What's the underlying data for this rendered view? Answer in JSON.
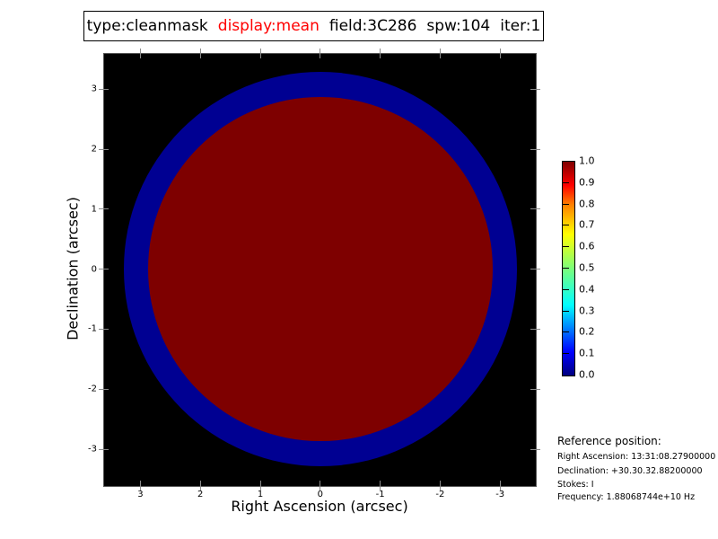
{
  "title": {
    "segments": [
      {
        "text": "type:cleanmask",
        "color": "#000000"
      },
      {
        "text": "display:mean",
        "color": "#ff0000"
      },
      {
        "text": "field:3C286",
        "color": "#000000"
      },
      {
        "text": "spw:104",
        "color": "#000000"
      },
      {
        "text": "iter:1",
        "color": "#000000"
      }
    ]
  },
  "axes": {
    "xlabel": "Right Ascension (arcsec)",
    "ylabel": "Declination (arcsec)",
    "x_tick_labels": [
      "3",
      "2",
      "1",
      "0",
      "-1",
      "-2",
      "-3"
    ],
    "y_tick_labels": [
      "3",
      "2",
      "1",
      "0",
      "-1",
      "-2",
      "-3"
    ]
  },
  "colorbar": {
    "tick_labels": [
      "1.0",
      "0.9",
      "0.8",
      "0.7",
      "0.6",
      "0.5",
      "0.4",
      "0.3",
      "0.2",
      "0.1",
      "0.0"
    ],
    "min": 0.0,
    "max": 1.0,
    "colormap": "jet"
  },
  "reference": {
    "heading": "Reference position:",
    "lines": [
      "Right Ascension: 13:31:08.27900000",
      "Declination: +30.30.32.88200000",
      "Stokes: I",
      "Frequency: 1.88068744e+10 Hz"
    ]
  },
  "chart_data": {
    "type": "heatmap",
    "title": "type:cleanmask  display:mean  field:3C286  spw:104  iter:1",
    "xlabel": "Right Ascension (arcsec)",
    "ylabel": "Declination (arcsec)",
    "x_ticks": [
      3,
      2,
      1,
      0,
      -1,
      -2,
      -3
    ],
    "y_ticks": [
      3,
      2,
      1,
      0,
      -1,
      -2,
      -3
    ],
    "x_range_arcsec": [
      3.6,
      -3.6
    ],
    "y_range_arcsec": [
      -3.6,
      3.6
    ],
    "grid": false,
    "background_color": "#000000",
    "regions": [
      {
        "name": "mask-outer-ring",
        "shape": "circle",
        "center_arcsec": [
          0,
          0
        ],
        "radius_arcsec": 3.28,
        "value": 0.05,
        "color": "#000092"
      },
      {
        "name": "mask-inner-disk",
        "shape": "circle",
        "center_arcsec": [
          0,
          0
        ],
        "radius_arcsec": 2.87,
        "value": 1.0,
        "color": "#7e0000"
      }
    ],
    "colorbar": {
      "orientation": "vertical",
      "position": "right",
      "min": 0.0,
      "max": 1.0,
      "ticks": [
        0.0,
        0.1,
        0.2,
        0.3,
        0.4,
        0.5,
        0.6,
        0.7,
        0.8,
        0.9,
        1.0
      ],
      "colormap": "jet"
    }
  }
}
